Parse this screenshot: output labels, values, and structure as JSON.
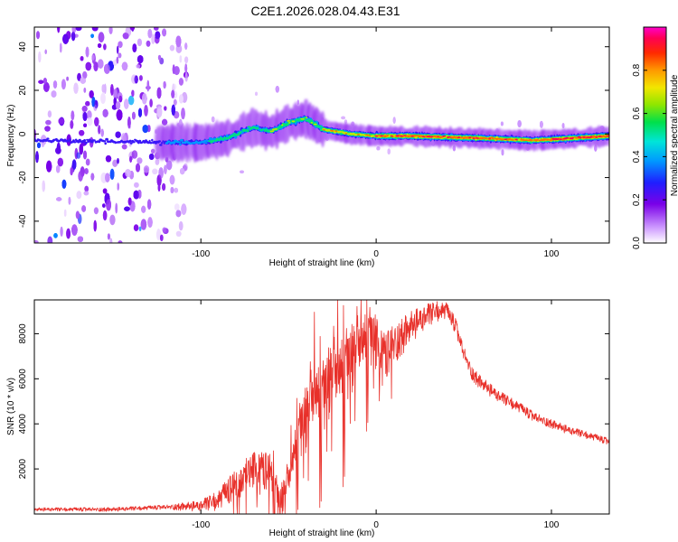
{
  "chart_data": [
    {
      "type": "heatmap",
      "title": "C2E1.2026.028.04.43.E31",
      "xlabel": "Height of straight line (km)",
      "ylabel": "Frequency (Hz)",
      "xlim": [
        -195,
        133
      ],
      "ylim": [
        -50,
        49
      ],
      "xticks": [
        -100,
        0,
        100
      ],
      "yticks": [
        -40,
        -20,
        0,
        20,
        40
      ],
      "colorbar": {
        "label": "Normalized spectral amplitude",
        "range": [
          0,
          1
        ],
        "ticks": [
          "0.0",
          "0.2",
          "0.4",
          "0.6",
          "0.8"
        ],
        "tick_values": [
          0,
          0.2,
          0.4,
          0.6,
          0.8
        ]
      },
      "ridge": {
        "description_points": [
          {
            "x": -195,
            "y": -3
          },
          {
            "x": -120,
            "y": -4
          },
          {
            "x": -100,
            "y": -4
          },
          {
            "x": -85,
            "y": -2
          },
          {
            "x": -70,
            "y": 3
          },
          {
            "x": -60,
            "y": 1
          },
          {
            "x": -50,
            "y": 5
          },
          {
            "x": -40,
            "y": 7
          },
          {
            "x": -30,
            "y": 2
          },
          {
            "x": -15,
            "y": 0
          },
          {
            "x": 0,
            "y": -1
          },
          {
            "x": 20,
            "y": -1
          },
          {
            "x": 60,
            "y": -2
          },
          {
            "x": 90,
            "y": -3
          },
          {
            "x": 133,
            "y": -1
          }
        ]
      }
    },
    {
      "type": "line",
      "xlabel": "Height of straight line (km)",
      "ylabel": "SNR (10 * v/v)",
      "xlim": [
        -195,
        133
      ],
      "ylim": [
        0,
        9500
      ],
      "xticks": [
        -100,
        0,
        100
      ],
      "yticks": [
        2000,
        4000,
        6000,
        8000
      ],
      "color": "#e8302a",
      "envelope": {
        "x": [
          -195,
          -150,
          -120,
          -100,
          -90,
          -80,
          -70,
          -60,
          -55,
          -50,
          -45,
          -40,
          -35,
          -30,
          -25,
          -20,
          -15,
          -10,
          -5,
          0,
          5,
          10,
          20,
          30,
          35,
          40,
          45,
          50,
          55,
          60,
          70,
          80,
          90,
          100,
          110,
          120,
          133
        ],
        "y": [
          200,
          200,
          300,
          350,
          600,
          1300,
          2000,
          1800,
          350,
          1500,
          3500,
          4200,
          5500,
          5200,
          6200,
          6500,
          6700,
          7500,
          8000,
          7600,
          6900,
          7500,
          8300,
          8800,
          9000,
          9000,
          8400,
          7100,
          6200,
          5800,
          5200,
          4800,
          4300,
          4000,
          3700,
          3500,
          3200
        ]
      },
      "noise": {
        "x": [
          -195,
          -120,
          -100,
          -80,
          -60,
          -50,
          -40,
          -20,
          0,
          20,
          40,
          60,
          100,
          133
        ],
        "amplitude": [
          80,
          100,
          250,
          700,
          900,
          700,
          1500,
          1700,
          1200,
          700,
          400,
          300,
          200,
          150
        ]
      }
    }
  ]
}
